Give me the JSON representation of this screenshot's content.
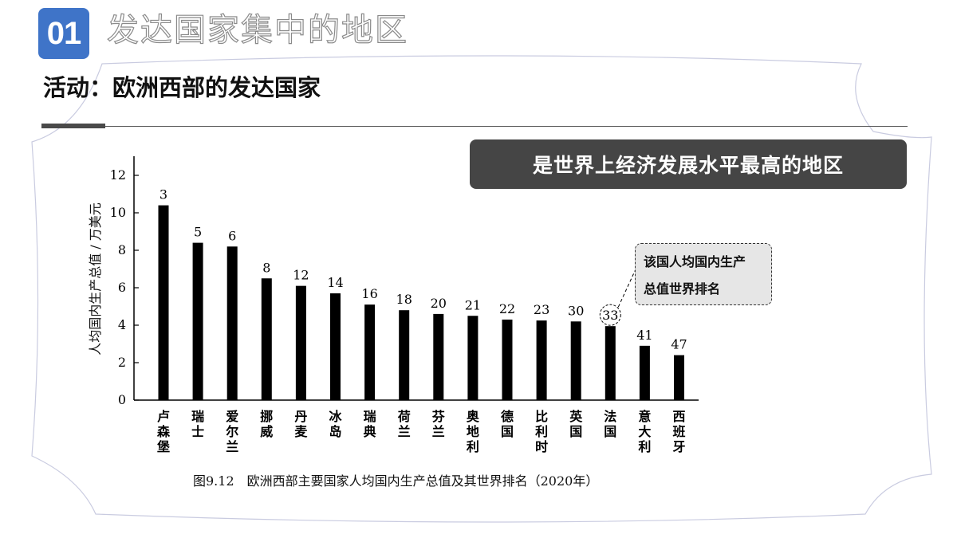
{
  "header": {
    "section_number": "01",
    "section_title": "发达国家集中的地区",
    "activity_title": "活动：欧洲西部的发达国家"
  },
  "headline": "是世界上经济发展水平最高的地区",
  "callout": {
    "line1": "该国人均国内生产",
    "line2": "总值世界排名"
  },
  "caption": "图9.12　欧洲西部主要国家人均国内生产总值及其世界排名（2020年）",
  "colors": {
    "badge": "#3f74c8",
    "bar": "#000000",
    "headline_bg": "#454545"
  },
  "chart_data": {
    "type": "bar",
    "ylabel": "人均国内生产总值 / 万美元",
    "ylim": [
      0,
      12
    ],
    "yticks": [
      0,
      2,
      4,
      6,
      8,
      10,
      12
    ],
    "categories": [
      "卢森堡",
      "瑞士",
      "爱尔兰",
      "挪威",
      "丹麦",
      "冰岛",
      "瑞典",
      "荷兰",
      "芬兰",
      "奥地利",
      "德国",
      "比利时",
      "英国",
      "法国",
      "意大利",
      "西班牙"
    ],
    "values": [
      10.4,
      8.4,
      8.2,
      6.5,
      6.1,
      5.7,
      5.1,
      4.8,
      4.6,
      4.5,
      4.3,
      4.25,
      4.2,
      3.95,
      2.9,
      2.4
    ],
    "rank_labels": [
      "3",
      "5",
      "6",
      "8",
      "12",
      "14",
      "16",
      "18",
      "20",
      "21",
      "22",
      "23",
      "30",
      "33",
      "41",
      "47"
    ],
    "highlighted": "法国"
  }
}
